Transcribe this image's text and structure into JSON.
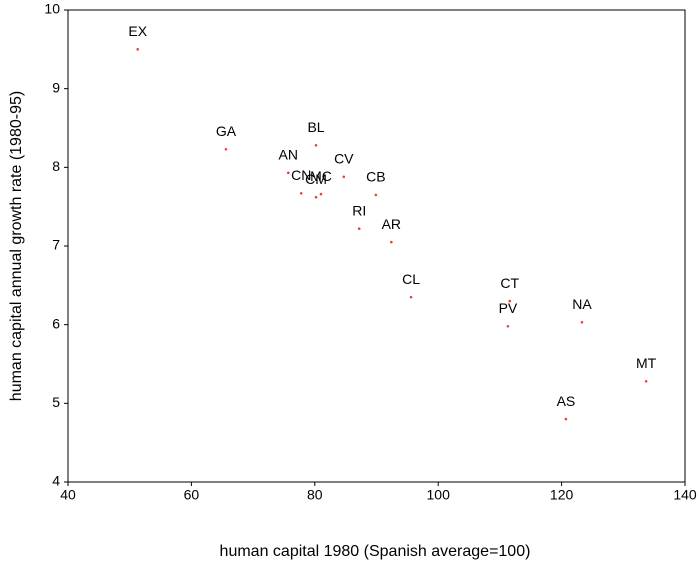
{
  "chart_data": {
    "type": "scatter",
    "x_label": "human capital 1980 (Spanish average=100)",
    "y_label": "human capital annual growth rate (1980-95)",
    "labels": [
      "EX",
      "GA",
      "BL",
      "AN",
      "CV",
      "CN",
      "MC",
      "CM",
      "CB",
      "RI",
      "AR",
      "CL",
      "CT",
      "PV",
      "NA",
      "MT",
      "AS"
    ],
    "x": [
      51.3,
      65.6,
      80.2,
      75.7,
      84.7,
      77.8,
      81.0,
      80.2,
      89.9,
      87.2,
      92.4,
      95.6,
      111.6,
      111.3,
      123.3,
      133.7,
      120.7
    ],
    "values": [
      9.5,
      8.23,
      8.28,
      7.93,
      7.88,
      7.67,
      7.66,
      7.62,
      7.65,
      7.22,
      7.05,
      6.35,
      6.3,
      5.98,
      6.03,
      5.28,
      4.8
    ],
    "color": "#e8423a",
    "xlim": [
      40,
      140
    ],
    "xticks": [
      40,
      60,
      80,
      100,
      120,
      140
    ],
    "ylim": [
      4,
      10
    ],
    "yticks": [
      4,
      5,
      6,
      7,
      8,
      9,
      10
    ],
    "grid": false
  }
}
